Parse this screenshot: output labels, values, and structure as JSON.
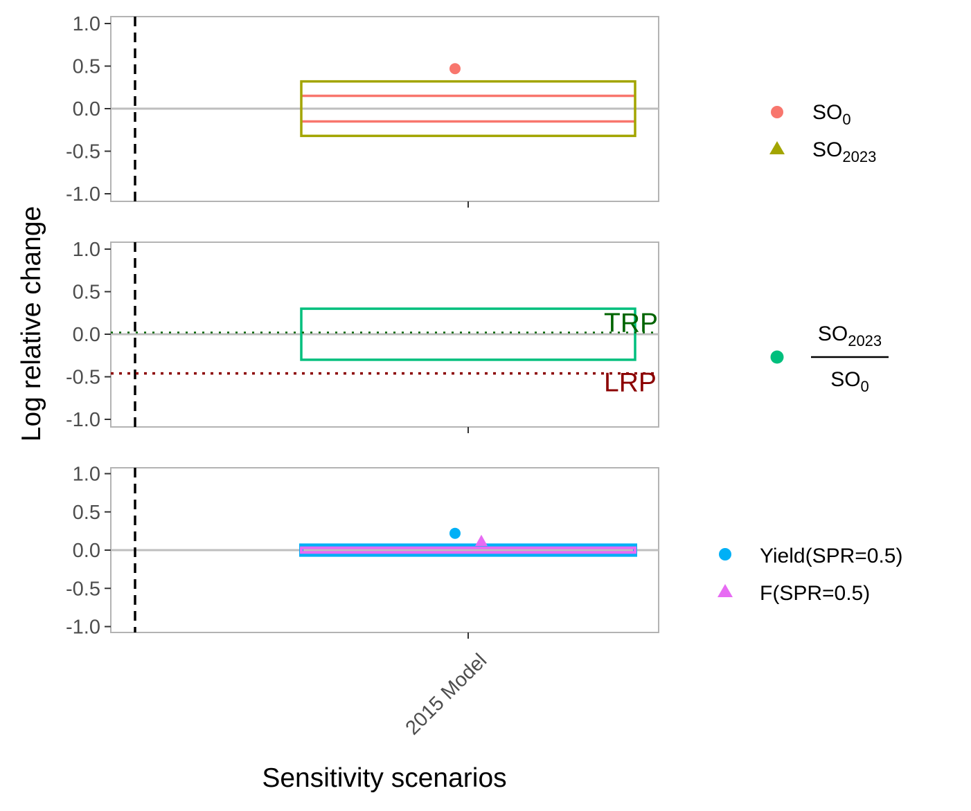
{
  "chart_data": {
    "type": "scatter",
    "xlabel": "Sensitivity scenarios",
    "ylabel": "Log relative change",
    "categories": [
      "2015 Model"
    ],
    "ylim": [
      -1.08,
      1.08
    ],
    "yticks": [
      1.0,
      0.5,
      0.0,
      -0.5,
      -1.0
    ],
    "ytick_labels": [
      "1.0",
      "0.5",
      "0.0",
      "-0.5",
      "-1.0"
    ],
    "grid": false,
    "colors": {
      "so0": "#F8766D",
      "so2023": "#A3A500",
      "ratio": "#00BF7D",
      "yield": "#00B0F6",
      "f": "#E76BF3",
      "trp": "#006400",
      "lrp": "#8B0000",
      "zero_line": "#BEBEBE"
    },
    "panels": [
      {
        "legend": [
          {
            "shape": "circle",
            "color": "#F8766D",
            "base": "SO",
            "sub": "0"
          },
          {
            "shape": "triangle",
            "color": "#A3A500",
            "base": "SO",
            "sub": "2023"
          }
        ],
        "points": [
          {
            "series": "SO0",
            "category": "2015 Model",
            "y": 0.47,
            "shape": "circle",
            "color": "#F8766D"
          }
        ],
        "bands": [
          {
            "series": "SO0",
            "color": "#F8766D",
            "ymin": -0.15,
            "ymax": 0.15
          },
          {
            "series": "SO2023",
            "color": "#A3A500",
            "ymin": -0.32,
            "ymax": 0.32
          }
        ]
      },
      {
        "legend_fraction": {
          "num_base": "SO",
          "num_sub": "2023",
          "den_base": "SO",
          "den_sub": "0",
          "color": "#00BF7D"
        },
        "bands": [
          {
            "series": "SO2023/SO0",
            "color": "#00BF7D",
            "ymin": -0.3,
            "ymax": 0.3
          }
        ],
        "ref_lines": [
          {
            "label": "TRP",
            "y": 0.02,
            "color": "#006400"
          },
          {
            "label": "LRP",
            "y": -0.46,
            "color": "#8B0000"
          }
        ]
      },
      {
        "legend": [
          {
            "shape": "circle",
            "color": "#00B0F6",
            "label": "Yield(SPR=0.5)"
          },
          {
            "shape": "triangle",
            "color": "#E76BF3",
            "label": "F(SPR=0.5)"
          }
        ],
        "points": [
          {
            "series": "Yield(SPR=0.5)",
            "category": "2015 Model",
            "y": 0.22,
            "shape": "circle",
            "color": "#00B0F6"
          },
          {
            "series": "F(SPR=0.5)",
            "category": "2015 Model",
            "y": 0.12,
            "shape": "triangle",
            "color": "#E76BF3"
          }
        ],
        "bands": [
          {
            "series": "Yield(SPR=0.5)",
            "color": "#00B0F6",
            "ymin": -0.06,
            "ymax": 0.06
          },
          {
            "series": "F(SPR=0.5)",
            "color": "#E76BF3",
            "ymin": -0.03,
            "ymax": 0.03
          }
        ]
      }
    ]
  }
}
